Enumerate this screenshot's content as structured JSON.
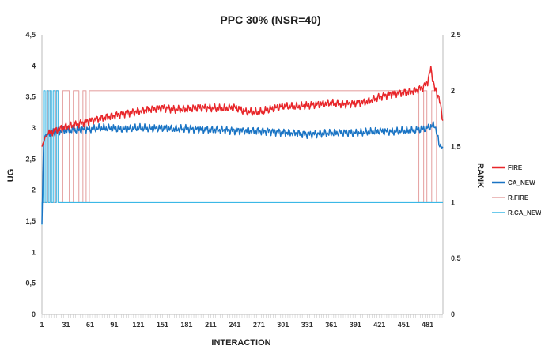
{
  "chart_data": {
    "type": "line",
    "title": "PPC 30% (NSR=40)",
    "xlabel": "INTERACTION",
    "ylabel": "UG",
    "y2label": "RANK",
    "x_ticks": [
      "1",
      "31",
      "61",
      "91",
      "121",
      "151",
      "181",
      "211",
      "241",
      "271",
      "301",
      "331",
      "361",
      "391",
      "421",
      "451",
      "481"
    ],
    "x_range": [
      1,
      500
    ],
    "y_ticks": [
      "0",
      "0,5",
      "1",
      "1,5",
      "2",
      "2,5",
      "3",
      "3,5",
      "4",
      "4,5"
    ],
    "ylim": [
      0,
      4.5
    ],
    "y2_ticks": [
      "0",
      "0,5",
      "1",
      "1,5",
      "2",
      "2,5"
    ],
    "y2lim": [
      0,
      2.5
    ],
    "grid": false,
    "legend_position": "right",
    "series": [
      {
        "name": "FIRE",
        "axis": "left",
        "color": "#e8262a",
        "x": [
          1,
          5,
          10,
          20,
          31,
          45,
          61,
          75,
          91,
          105,
          121,
          135,
          151,
          165,
          181,
          195,
          211,
          225,
          241,
          255,
          271,
          285,
          301,
          315,
          331,
          345,
          361,
          375,
          391,
          405,
          421,
          435,
          451,
          465,
          475,
          481,
          485,
          490,
          495,
          500
        ],
        "values": [
          2.7,
          2.85,
          2.92,
          2.97,
          3.02,
          3.06,
          3.12,
          3.16,
          3.2,
          3.24,
          3.27,
          3.3,
          3.33,
          3.3,
          3.3,
          3.33,
          3.32,
          3.31,
          3.33,
          3.26,
          3.25,
          3.3,
          3.35,
          3.34,
          3.36,
          3.38,
          3.4,
          3.38,
          3.4,
          3.42,
          3.5,
          3.55,
          3.57,
          3.6,
          3.65,
          3.75,
          3.95,
          3.62,
          3.5,
          3.12
        ]
      },
      {
        "name": "CA_NEW",
        "axis": "left",
        "color": "#1a74c4",
        "x": [
          1,
          3,
          5,
          10,
          20,
          31,
          45,
          61,
          75,
          91,
          105,
          121,
          135,
          151,
          165,
          181,
          195,
          211,
          225,
          241,
          255,
          271,
          285,
          301,
          315,
          331,
          345,
          361,
          375,
          391,
          405,
          421,
          435,
          451,
          465,
          481,
          490,
          495,
          500
        ],
        "values": [
          1.45,
          2.75,
          2.88,
          2.92,
          2.94,
          2.96,
          2.97,
          2.98,
          3.0,
          2.99,
          2.98,
          3.0,
          2.99,
          3.0,
          2.98,
          2.99,
          2.98,
          2.97,
          2.97,
          2.96,
          2.96,
          2.95,
          2.95,
          2.93,
          2.92,
          2.9,
          2.91,
          2.92,
          2.93,
          2.92,
          2.93,
          2.95,
          2.94,
          2.95,
          2.96,
          3.0,
          3.05,
          2.75,
          2.68
        ]
      },
      {
        "name": "R.FIRE",
        "axis": "right",
        "color": "#e6a6a6",
        "x": [
          1,
          8,
          8,
          12,
          12,
          18,
          18,
          22,
          22,
          27,
          27,
          35,
          35,
          40,
          40,
          47,
          47,
          52,
          52,
          56,
          56,
          60,
          60,
          68,
          68,
          470,
          470,
          476,
          476,
          480,
          480,
          486,
          486,
          492,
          492,
          500
        ],
        "values": [
          1,
          1,
          2,
          2,
          1,
          1,
          2,
          2,
          1,
          1,
          2,
          2,
          1,
          1,
          2,
          2,
          1,
          1,
          2,
          2,
          1,
          1,
          2,
          2,
          2,
          2,
          1,
          1,
          2,
          2,
          1,
          1,
          2,
          2,
          1,
          1
        ]
      },
      {
        "name": "R.CA_NEW",
        "axis": "right",
        "color": "#3bb8e6",
        "x": [
          1,
          1,
          3,
          3,
          5,
          5,
          7,
          7,
          9,
          9,
          11,
          11,
          13,
          13,
          15,
          15,
          17,
          17,
          19,
          19,
          21,
          21,
          23,
          23,
          500
        ],
        "values": [
          0.8,
          1,
          1,
          2,
          2,
          1,
          1,
          2,
          2,
          1,
          1,
          2,
          2,
          1,
          1,
          2,
          2,
          1,
          1,
          2,
          2,
          1,
          1,
          1,
          1
        ]
      }
    ]
  }
}
